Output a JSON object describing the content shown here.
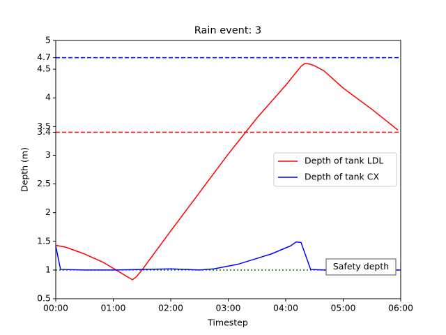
{
  "chart_data": {
    "type": "line",
    "title": "Rain event: 3",
    "x_label": "Timestep",
    "y_label": "Depth (m)",
    "xlim": [
      0,
      360
    ],
    "xticks": [
      {
        "value": 0,
        "label": "00:00"
      },
      {
        "value": 60,
        "label": "01:00"
      },
      {
        "value": 120,
        "label": "02:00"
      },
      {
        "value": 180,
        "label": "03:00"
      },
      {
        "value": 240,
        "label": "04:00"
      },
      {
        "value": 300,
        "label": "05:00"
      },
      {
        "value": 360,
        "label": "06:00"
      }
    ],
    "ylim": [
      0.5,
      5.0
    ],
    "yticks": [
      0.5,
      1.0,
      1.5,
      2.0,
      2.5,
      3.0,
      3.4,
      3.5,
      4.0,
      4.5,
      4.7,
      5.0
    ],
    "legend": "center right",
    "series": [
      {
        "name": "Depth of tank LDL",
        "color": "#ff0000",
        "x": [
          0,
          10,
          30,
          50,
          60,
          70,
          78,
          80,
          84,
          90,
          120,
          150,
          180,
          210,
          240,
          256,
          260,
          265,
          270,
          280,
          300,
          330,
          357
        ],
        "values": [
          1.43,
          1.4,
          1.28,
          1.13,
          1.03,
          0.93,
          0.85,
          0.83,
          0.88,
          1.0,
          1.68,
          2.35,
          3.02,
          3.65,
          4.22,
          4.55,
          4.6,
          4.59,
          4.56,
          4.47,
          4.17,
          3.8,
          3.44
        ]
      },
      {
        "name": "Depth of tank CX",
        "color": "#0000ff",
        "x": [
          0,
          5,
          30,
          60,
          90,
          120,
          150,
          165,
          190,
          225,
          245,
          251,
          256,
          266,
          280,
          360
        ],
        "values": [
          1.42,
          1.01,
          1.0,
          1.0,
          1.01,
          1.02,
          1.0,
          1.02,
          1.1,
          1.28,
          1.42,
          1.49,
          1.48,
          1.01,
          1.0,
          1.0
        ]
      }
    ],
    "hlines": [
      {
        "value": 4.7,
        "color": "#0000ff",
        "style": "dashed"
      },
      {
        "value": 3.4,
        "color": "#ff0000",
        "style": "dashed"
      },
      {
        "value": 1.0,
        "color": "#008000",
        "style": "dotted"
      }
    ],
    "annotation": "Safety depth"
  }
}
